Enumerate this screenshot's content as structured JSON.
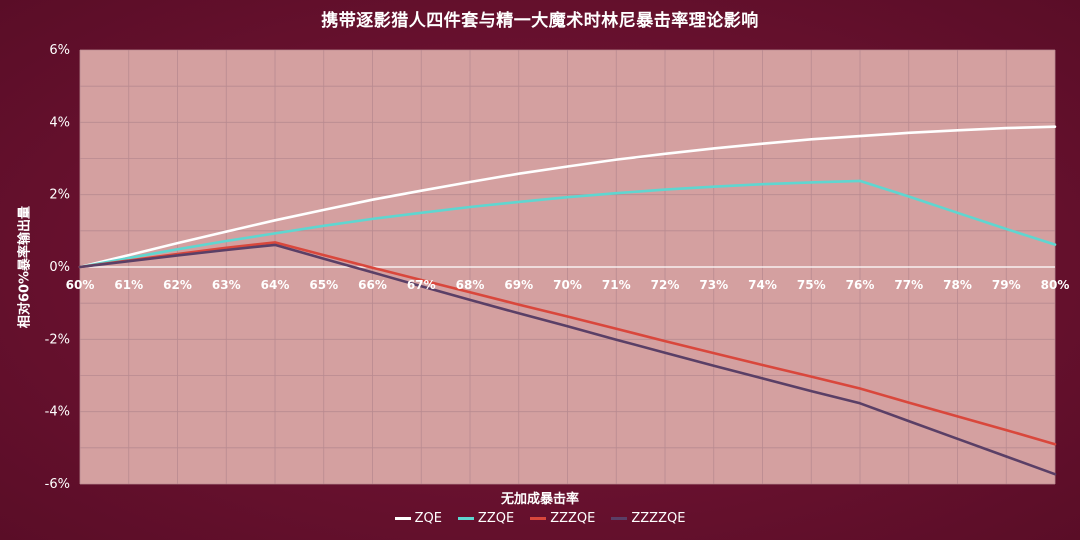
{
  "chart_data": {
    "type": "line",
    "title": "携带逐影猎人四件套与精一大魔术时林尼暴击率理论影响",
    "xlabel": "无加成暴击率",
    "ylabel": "相对60%暴率输出量",
    "categories": [
      "60%",
      "61%",
      "62%",
      "63%",
      "64%",
      "65%",
      "66%",
      "67%",
      "68%",
      "69%",
      "70%",
      "71%",
      "72%",
      "73%",
      "74%",
      "75%",
      "76%",
      "77%",
      "78%",
      "79%",
      "80%"
    ],
    "ylim": [
      -6,
      6
    ],
    "yticks": [
      -6,
      -4,
      -2,
      0,
      2,
      4,
      6
    ],
    "ytick_labels": [
      "-6%",
      "-4%",
      "-2%",
      "0%",
      "2%",
      "4%",
      "6%"
    ],
    "grid": true,
    "legend_position": "bottom",
    "series": [
      {
        "name": "ZQE",
        "color": "#ffffff",
        "values": [
          0,
          0.33,
          0.66,
          0.98,
          1.29,
          1.58,
          1.86,
          2.11,
          2.35,
          2.58,
          2.78,
          2.97,
          3.13,
          3.28,
          3.41,
          3.53,
          3.62,
          3.71,
          3.78,
          3.84,
          3.88
        ]
      },
      {
        "name": "ZZQE",
        "color": "#5fd6d0",
        "values": [
          0,
          0.25,
          0.49,
          0.72,
          0.93,
          1.14,
          1.33,
          1.5,
          1.66,
          1.8,
          1.93,
          2.04,
          2.14,
          2.22,
          2.29,
          2.34,
          2.38,
          1.95,
          1.5,
          1.05,
          0.62
        ]
      },
      {
        "name": "ZZZQE",
        "color": "#d9473c",
        "values": [
          0,
          0.18,
          0.36,
          0.53,
          0.68,
          0.33,
          -0.02,
          -0.36,
          -0.7,
          -1.04,
          -1.37,
          -1.71,
          -2.05,
          -2.38,
          -2.71,
          -3.03,
          -3.36,
          -3.75,
          -4.13,
          -4.51,
          -4.9
        ]
      },
      {
        "name": "ZZZZQE",
        "color": "#5a3f66",
        "values": [
          0,
          0.16,
          0.32,
          0.47,
          0.61,
          0.23,
          -0.15,
          -0.53,
          -0.91,
          -1.28,
          -1.64,
          -2.01,
          -2.37,
          -2.73,
          -3.08,
          -3.43,
          -3.77,
          -4.26,
          -4.75,
          -5.24,
          -5.73
        ]
      }
    ]
  }
}
